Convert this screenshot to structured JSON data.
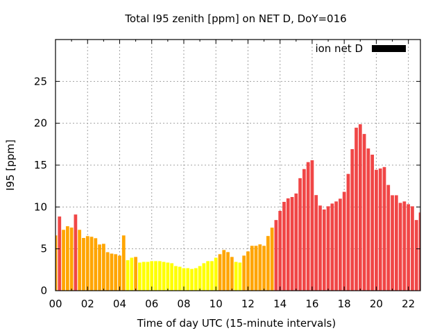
{
  "chart_data": {
    "type": "bar",
    "title": "Total I95 zenith [ppm] on NET D, DoY=016",
    "xlabel": "Time of day UTC (15-minute intervals)",
    "ylabel": "I95 [ppm]",
    "xlim": [
      0,
      22.75
    ],
    "ylim": [
      0,
      30
    ],
    "grid": true,
    "legend": {
      "label": "ion net D",
      "color": "#000000",
      "placement": "top-right"
    },
    "x_ticks": [
      {
        "value": 0,
        "label": "00"
      },
      {
        "value": 2,
        "label": "02"
      },
      {
        "value": 4,
        "label": "04"
      },
      {
        "value": 6,
        "label": "06"
      },
      {
        "value": 8,
        "label": "08"
      },
      {
        "value": 10,
        "label": "10"
      },
      {
        "value": 12,
        "label": "12"
      },
      {
        "value": 14,
        "label": "14"
      },
      {
        "value": 16,
        "label": "16"
      },
      {
        "value": 18,
        "label": "18"
      },
      {
        "value": 20,
        "label": "20"
      },
      {
        "value": 22,
        "label": "22"
      }
    ],
    "y_ticks": [
      {
        "value": 0,
        "label": "0"
      },
      {
        "value": 5,
        "label": "5"
      },
      {
        "value": 10,
        "label": "10"
      },
      {
        "value": 15,
        "label": "15"
      },
      {
        "value": 20,
        "label": "20"
      },
      {
        "value": 25,
        "label": "25"
      }
    ],
    "bar_interval_hours": 0.25,
    "color_thresholds": {
      "low_max": 4,
      "high_min": 8
    },
    "colors": {
      "low": "#ffff00",
      "medium": "#ffa500",
      "high": "#f04646"
    },
    "values": [
      6.6,
      8.86,
      7.27,
      7.7,
      7.54,
      9.1,
      7.27,
      6.3,
      6.52,
      6.44,
      6.27,
      5.52,
      5.6,
      4.6,
      4.43,
      4.36,
      4.19,
      6.6,
      3.64,
      3.94,
      4.03,
      3.36,
      3.44,
      3.44,
      3.53,
      3.53,
      3.53,
      3.44,
      3.36,
      3.28,
      2.94,
      2.86,
      2.69,
      2.69,
      2.6,
      2.69,
      2.94,
      3.28,
      3.53,
      3.53,
      3.94,
      4.36,
      4.86,
      4.61,
      4.03,
      3.44,
      3.36,
      4.19,
      4.69,
      5.36,
      5.36,
      5.53,
      5.36,
      6.53,
      7.53,
      8.44,
      9.53,
      10.61,
      11.03,
      11.19,
      11.61,
      13.44,
      14.53,
      15.36,
      15.58,
      11.42,
      10.17,
      9.7,
      10.08,
      10.41,
      10.66,
      10.99,
      11.81,
      13.95,
      16.91,
      19.47,
      19.88,
      18.72,
      16.99,
      16.25,
      14.44,
      14.6,
      14.77,
      12.63,
      11.4,
      11.4,
      10.49,
      10.66,
      10.33,
      10.08,
      8.44,
      9.34
    ]
  }
}
